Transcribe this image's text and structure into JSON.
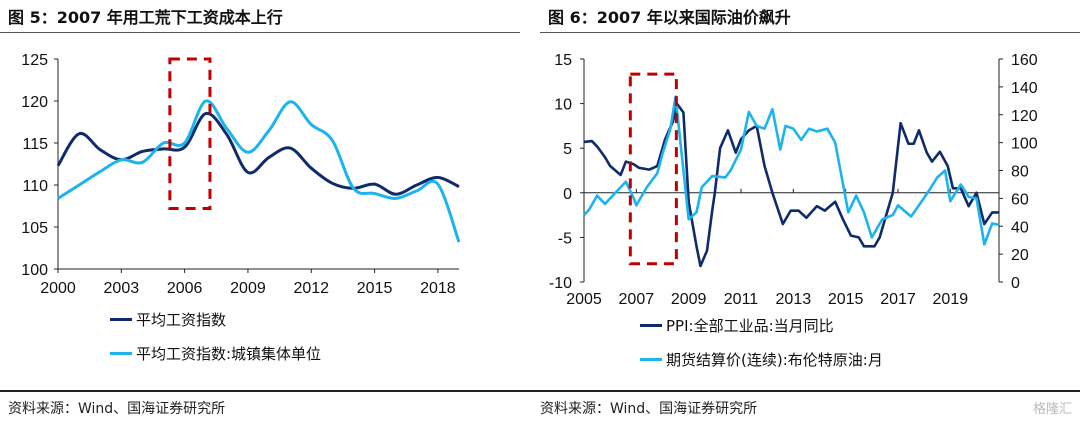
{
  "header": {
    "left_title": "图 5：2007 年用工荒下工资成本上行",
    "right_title": "图 6：2007 年以来国际油价飙升"
  },
  "footer": {
    "left_source": "资料来源：Wind、国海证券研究所",
    "right_source": "资料来源：Wind、国海证券研究所",
    "watermark": "格隆汇"
  },
  "colors": {
    "dark": "#0f2b6b",
    "light": "#1bb4ec",
    "highlight": "#c00000"
  },
  "chart_data": [
    {
      "type": "line",
      "title": "图 5：2007 年用工荒下工资成本上行",
      "x": [
        2000,
        2001,
        2002,
        2003,
        2004,
        2005,
        2006,
        2007,
        2008,
        2009,
        2010,
        2011,
        2012,
        2013,
        2014,
        2015,
        2016,
        2017,
        2018,
        2019
      ],
      "xticks": [
        "2000",
        "2003",
        "2006",
        "2009",
        "2012",
        "2015",
        "2018"
      ],
      "xlim": [
        2000,
        2019
      ],
      "ylim": [
        100,
        125
      ],
      "yticks": [
        "100",
        "105",
        "110",
        "115",
        "120",
        "125"
      ],
      "grid": false,
      "legend": "bottom",
      "series": [
        {
          "name": "平均工资指数",
          "color": "#0f2b6b",
          "values": [
            112.3,
            116.1,
            114.2,
            113.0,
            114.0,
            114.3,
            114.5,
            118.5,
            116.0,
            111.5,
            113.3,
            114.4,
            112.0,
            110.2,
            109.6,
            110.1,
            108.9,
            110.0,
            110.9,
            109.8
          ]
        },
        {
          "name": "平均工资指数:城镇集体单位",
          "color": "#1bb4ec",
          "values": [
            108.4,
            110.0,
            111.6,
            113.0,
            112.7,
            115.0,
            115.0,
            120.0,
            116.7,
            113.9,
            116.5,
            119.9,
            117.2,
            115.3,
            109.6,
            109.0,
            108.4,
            109.3,
            110.1,
            103.2
          ]
        }
      ],
      "highlight": {
        "x": [
          2005.3,
          2007.2
        ],
        "y": [
          107.2,
          125
        ]
      }
    },
    {
      "type": "line",
      "title": "图 6：2007 年以来国际油价飙升",
      "xlim": [
        2005,
        2020.86
      ],
      "xticks": [
        "2005",
        "2007",
        "2009",
        "2011",
        "2013",
        "2015",
        "2017",
        "2019"
      ],
      "ylim": [
        -10,
        15
      ],
      "yticks": [
        "-10",
        "-5",
        "0",
        "5",
        "10",
        "15"
      ],
      "y2lim": [
        0,
        160
      ],
      "y2ticks": [
        "0",
        "20",
        "40",
        "60",
        "80",
        "100",
        "120",
        "140",
        "160"
      ],
      "grid": false,
      "legend": "bottom",
      "series": [
        {
          "name": "PPI:全部工业品:当月同比",
          "axis": "left",
          "color": "#0f2b6b",
          "x": [
            2005.0,
            2005.3,
            2005.5,
            2005.8,
            2006.0,
            2006.4,
            2006.6,
            2006.9,
            2007.1,
            2007.5,
            2007.8,
            2008.1,
            2008.4,
            2008.55,
            2008.8,
            2009.0,
            2009.3,
            2009.45,
            2009.7,
            2009.9,
            2010.0,
            2010.2,
            2010.5,
            2010.8,
            2011.0,
            2011.3,
            2011.6,
            2011.9,
            2012.2,
            2012.6,
            2012.9,
            2013.2,
            2013.5,
            2013.9,
            2014.2,
            2014.6,
            2014.9,
            2015.2,
            2015.5,
            2015.7,
            2016.1,
            2016.3,
            2016.8,
            2017.1,
            2017.4,
            2017.6,
            2017.8,
            2018.1,
            2018.3,
            2018.6,
            2018.9,
            2019.1,
            2019.4,
            2019.7,
            2020.0,
            2020.3,
            2020.6,
            2020.86
          ],
          "values": [
            5.7,
            5.8,
            5.2,
            4.0,
            3.0,
            2.0,
            3.5,
            3.2,
            2.8,
            2.6,
            3.0,
            6.0,
            8.0,
            10.0,
            9.0,
            -1.0,
            -6.0,
            -8.2,
            -6.5,
            -2.0,
            0.0,
            5.0,
            7.0,
            4.5,
            6.0,
            7.0,
            7.5,
            3.0,
            0.0,
            -3.5,
            -2.0,
            -2.0,
            -2.8,
            -1.5,
            -2.0,
            -1.0,
            -3.0,
            -4.8,
            -5.0,
            -6.0,
            -6.0,
            -5.0,
            0.0,
            7.8,
            5.5,
            5.5,
            7.0,
            4.5,
            3.5,
            4.6,
            3.0,
            0.5,
            0.5,
            -1.5,
            0.0,
            -3.5,
            -2.2,
            -2.2
          ]
        },
        {
          "name": "期货结算价(连续):布伦特原油:月",
          "axis": "right",
          "color": "#1bb4ec",
          "x": [
            2005.0,
            2005.2,
            2005.5,
            2005.8,
            2006.1,
            2006.4,
            2006.6,
            2006.9,
            2007.0,
            2007.4,
            2007.8,
            2008.0,
            2008.3,
            2008.5,
            2008.8,
            2009.0,
            2009.3,
            2009.5,
            2009.9,
            2010.4,
            2010.6,
            2011.0,
            2011.3,
            2011.6,
            2011.9,
            2012.2,
            2012.5,
            2012.7,
            2013.0,
            2013.3,
            2013.6,
            2013.9,
            2014.3,
            2014.6,
            2014.9,
            2015.1,
            2015.4,
            2015.7,
            2016.0,
            2016.4,
            2016.8,
            2017.0,
            2017.5,
            2017.8,
            2018.2,
            2018.5,
            2018.8,
            2019.0,
            2019.4,
            2019.7,
            2020.0,
            2020.3,
            2020.6,
            2020.86
          ],
          "values": [
            48,
            52,
            62,
            56,
            62,
            68,
            72,
            60,
            55,
            68,
            78,
            92,
            110,
            133,
            80,
            45,
            50,
            68,
            76,
            75,
            80,
            95,
            122,
            112,
            110,
            124,
            95,
            112,
            110,
            102,
            110,
            108,
            110,
            100,
            70,
            50,
            62,
            50,
            32,
            45,
            48,
            55,
            47,
            55,
            66,
            75,
            80,
            58,
            70,
            61,
            60,
            27,
            42,
            41
          ]
        }
      ],
      "highlight": {
        "x": [
          2006.77,
          2008.53
        ],
        "y": [
          -7.95,
          13.3
        ]
      }
    }
  ]
}
